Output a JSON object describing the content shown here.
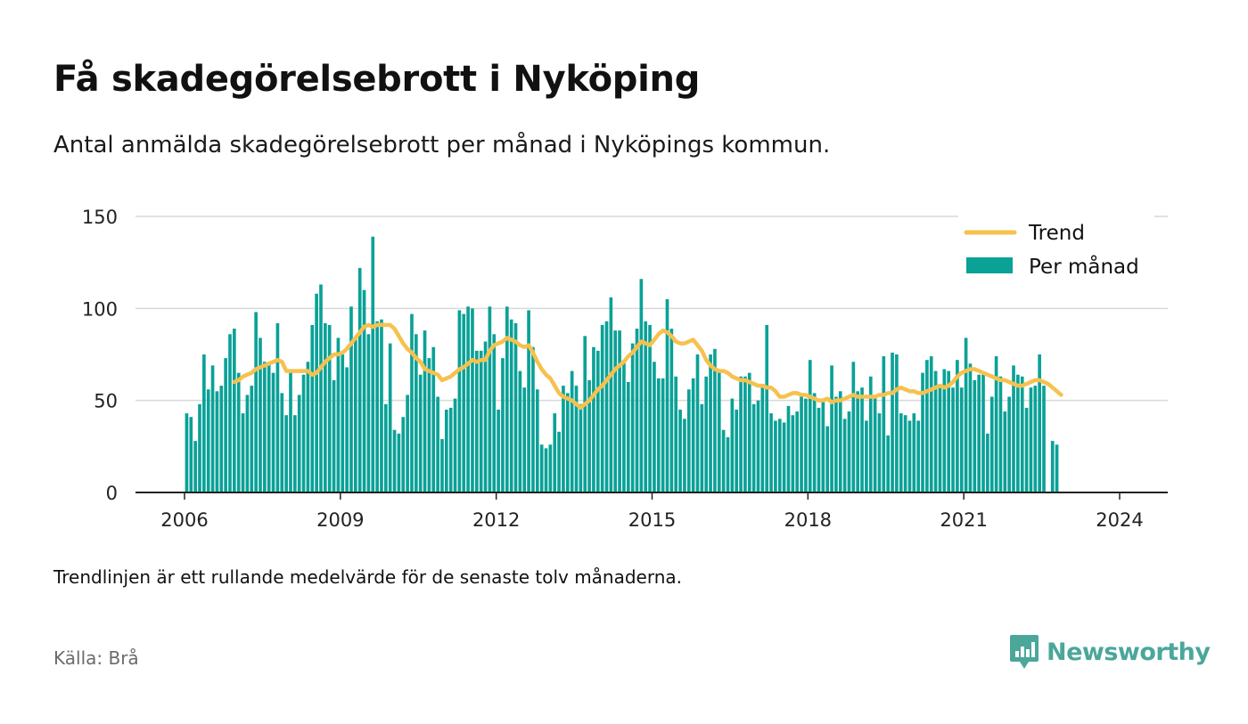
{
  "header": {
    "title": "Få skadegörelsebrott i Nyköping",
    "subtitle": "Antal anmälda skadegörelsebrott per månad i Nyköpings kommun."
  },
  "footer": {
    "note": "Trendlinjen är ett rullande medelvärde för de senaste tolv månaderna.",
    "source": "Källa: Brå",
    "brand": "Newsworthy"
  },
  "colors": {
    "bar": "#0aa197",
    "trend": "#f6c14e",
    "grid": "#d9d9d9",
    "axis": "#222222",
    "brand": "#4aa79a"
  },
  "icons": {
    "brand_logo": "bar-chart-speech-bubble-icon"
  },
  "chart_data": {
    "type": "bar",
    "title": "Få skadegörelsebrott i Nyköping",
    "subtitle": "Antal anmälda skadegörelsebrott per månad i Nyköpings kommun.",
    "xlabel": "",
    "ylabel": "",
    "ylim": [
      0,
      150
    ],
    "yticks": [
      0,
      50,
      100,
      150
    ],
    "xticks": [
      "2006",
      "2009",
      "2012",
      "2015",
      "2018",
      "2021",
      "2024"
    ],
    "grid": true,
    "legend_position": "top-right",
    "start": "2006-01",
    "end": "2024-01",
    "series": [
      {
        "name": "Per månad",
        "type": "bar",
        "values": [
          43,
          41,
          28,
          48,
          75,
          56,
          69,
          55,
          58,
          73,
          86,
          89,
          65,
          43,
          53,
          58,
          98,
          84,
          71,
          70,
          65,
          92,
          54,
          42,
          65,
          42,
          53,
          64,
          71,
          91,
          108,
          113,
          92,
          91,
          61,
          84,
          75,
          68,
          101,
          83,
          122,
          110,
          86,
          139,
          93,
          94,
          48,
          81,
          34,
          32,
          41,
          53,
          97,
          86,
          64,
          88,
          73,
          79,
          52,
          29,
          45,
          46,
          51,
          99,
          97,
          101,
          100,
          77,
          77,
          82,
          101,
          86,
          45,
          73,
          101,
          94,
          92,
          66,
          57,
          99,
          79,
          56,
          26,
          24,
          26,
          43,
          33,
          58,
          54,
          66,
          58,
          48,
          85,
          61,
          79,
          77,
          91,
          93,
          106,
          88,
          88,
          72,
          60,
          81,
          89,
          116,
          93,
          91,
          71,
          62,
          62,
          105,
          89,
          63,
          45,
          40,
          56,
          62,
          75,
          48,
          63,
          75,
          78,
          67,
          34,
          30,
          51,
          45,
          63,
          63,
          65,
          48,
          50,
          59,
          91,
          43,
          39,
          40,
          38,
          47,
          42,
          44,
          53,
          51,
          72,
          54,
          46,
          51,
          36,
          69,
          52,
          55,
          40,
          44,
          71,
          55,
          57,
          39,
          63,
          53,
          43,
          74,
          31,
          76,
          75,
          43,
          42,
          39,
          43,
          39,
          65,
          72,
          74,
          66,
          57,
          67,
          66,
          57,
          72,
          57,
          84,
          70,
          61,
          64,
          64,
          32,
          52,
          74,
          63,
          44,
          52,
          69,
          64,
          63,
          46,
          57,
          58,
          75,
          58,
          0,
          28,
          26,
          0
        ]
      },
      {
        "name": "Trend",
        "type": "line",
        "values": [
          null,
          null,
          null,
          null,
          null,
          null,
          null,
          null,
          null,
          null,
          null,
          60,
          61,
          63,
          64,
          65,
          67,
          68,
          69,
          70,
          71,
          72,
          71,
          66,
          66,
          66,
          66,
          66,
          66,
          64,
          65,
          68,
          71,
          73,
          75,
          75,
          76,
          78,
          81,
          84,
          87,
          90,
          91,
          90,
          91,
          91,
          91,
          91,
          89,
          85,
          81,
          78,
          76,
          73,
          71,
          67,
          66,
          65,
          64,
          61,
          62,
          63,
          65,
          67,
          68,
          70,
          72,
          71,
          72,
          72,
          77,
          80,
          81,
          82,
          84,
          83,
          82,
          80,
          79,
          80,
          76,
          71,
          67,
          64,
          62,
          58,
          54,
          52,
          51,
          50,
          48,
          46,
          48,
          50,
          53,
          56,
          58,
          61,
          64,
          67,
          69,
          71,
          74,
          76,
          79,
          82,
          81,
          80,
          83,
          86,
          88,
          87,
          85,
          82,
          81,
          81,
          82,
          83,
          80,
          77,
          72,
          69,
          67,
          66,
          66,
          65,
          63,
          62,
          61,
          61,
          60,
          59,
          58,
          58,
          57,
          57,
          55,
          52,
          52,
          53,
          54,
          54,
          53,
          53,
          52,
          51,
          50,
          50,
          51,
          49,
          50,
          50,
          51,
          52,
          53,
          52,
          52,
          52,
          52,
          52,
          53,
          53,
          54,
          54,
          56,
          57,
          56,
          55,
          55,
          54,
          54,
          55,
          56,
          57,
          58,
          57,
          58,
          60,
          63,
          65,
          66,
          67,
          67,
          66,
          65,
          64,
          63,
          62,
          61,
          61,
          60,
          59,
          58,
          58,
          59,
          60,
          61,
          61,
          60,
          59,
          57,
          55,
          53,
          null
        ]
      }
    ]
  }
}
